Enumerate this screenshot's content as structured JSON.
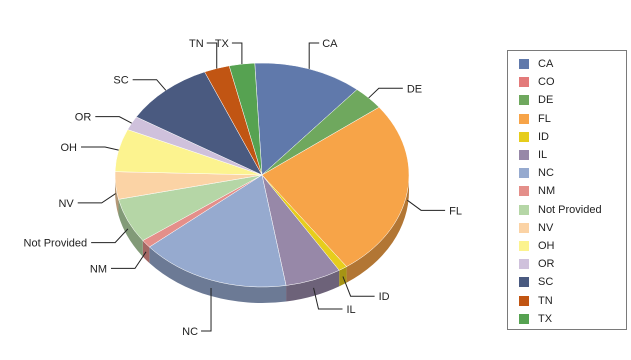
{
  "chart_data": {
    "type": "pie",
    "title": "",
    "legend_position": "right",
    "three_d": true,
    "slices": [
      {
        "label": "CA",
        "value": 12.4,
        "color": "#6079ab"
      },
      {
        "label": "DE",
        "value": 3.6,
        "color": "#6fa85e"
      },
      {
        "label": "FL",
        "value": 26.5,
        "color": "#f7a448"
      },
      {
        "label": "ID",
        "value": 1.0,
        "color": "#e6cd1c"
      },
      {
        "label": "IL",
        "value": 6.4,
        "color": "#9788a8"
      },
      {
        "label": "NC",
        "value": 17.1,
        "color": "#96aacf"
      },
      {
        "label": "NM",
        "value": 1.2,
        "color": "#e48f8a"
      },
      {
        "label": "Not Provided",
        "value": 6.7,
        "color": "#b5d6a6"
      },
      {
        "label": "NV",
        "value": 4.1,
        "color": "#fbd3a5"
      },
      {
        "label": "OH",
        "value": 6.4,
        "color": "#fcf38f"
      },
      {
        "label": "OR",
        "value": 2.1,
        "color": "#cfc1dc"
      },
      {
        "label": "SC",
        "value": 10.3,
        "color": "#4a5a80"
      },
      {
        "label": "TN",
        "value": 2.9,
        "color": "#c15513"
      },
      {
        "label": "TX",
        "value": 2.9,
        "color": "#56a251"
      }
    ],
    "legend": [
      "CA",
      "CO",
      "DE",
      "FL",
      "ID",
      "IL",
      "NC",
      "NM",
      "Not Provided",
      "NV",
      "OH",
      "OR",
      "SC",
      "TN",
      "TX"
    ],
    "legend_colors": {
      "CA": "#6079ab",
      "CO": "#e37a7a",
      "DE": "#6fa85e",
      "FL": "#f7a448",
      "ID": "#e6cd1c",
      "IL": "#9788a8",
      "NC": "#96aacf",
      "NM": "#e48f8a",
      "Not Provided": "#b5d6a6",
      "NV": "#fbd3a5",
      "OH": "#fcf38f",
      "OR": "#cfc1dc",
      "SC": "#4a5a80",
      "TN": "#c15513",
      "TX": "#56a251"
    }
  }
}
